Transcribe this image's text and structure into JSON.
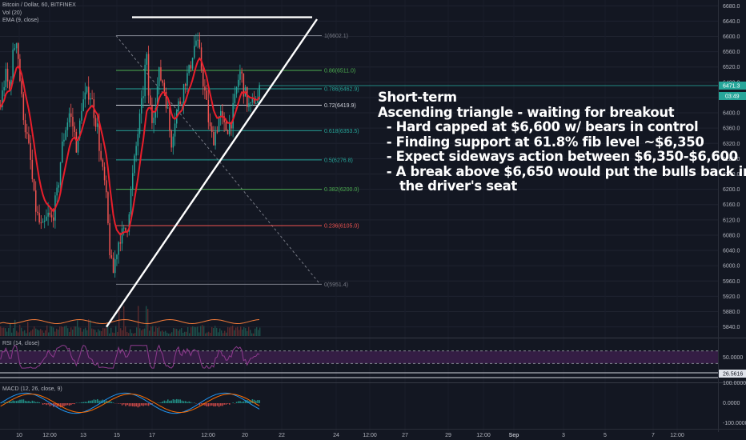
{
  "header": {
    "symbol": "Bitcoin / Dollar, 60, BITFINEX",
    "vol": "Vol (20)",
    "ema": "EMA (9, close)"
  },
  "indicators": {
    "rsi_label": "RSI (14, close)",
    "macd_label": "MACD (12, 26, close, 9)"
  },
  "annotation": {
    "lines": [
      "Short-term",
      "Ascending triangle - waiting for breakout",
      "  - Hard capped at $6,600 w/ bears in control",
      "  - Finding support at 61.8% fib level ~$6,350",
      "  - Expect sideways action between $6,350-$6,600",
      "  - A break above $6,650 would put the bulls back in",
      "     the driver's seat"
    ]
  },
  "colors": {
    "background": "#131722",
    "up": "#26a69a",
    "down": "#ef5350",
    "ema": "#e91e2b",
    "rsi_band": "#3b1f4a",
    "rsi_line": "#8e3a8e",
    "drawing": "#ffffff"
  },
  "chart_data": {
    "type": "candlestick",
    "price_axis": {
      "ticks": [
        6680,
        6640,
        6600,
        6560,
        6520,
        6480,
        6440,
        6400,
        6360,
        6320,
        6280,
        6240,
        6200,
        6160,
        6120,
        6080,
        6040,
        6000,
        5960,
        5920,
        5880,
        5840
      ],
      "tick_labels": [
        "6680.0",
        "6640.0",
        "6600.0",
        "6560.0",
        "6520.0",
        "6480.0",
        "6440.0",
        "6400.0",
        "6360.0",
        "6320.0",
        "6280.0",
        "6240.0",
        "6200.0",
        "6160.0",
        "6120.0",
        "6080.0",
        "6040.0",
        "6000.0",
        "5960.0",
        "5920.0",
        "5880.0",
        "5840.0"
      ],
      "last_price": 6471.3,
      "last_price_label": "6471.3",
      "countdown_label": "03:49"
    },
    "time_axis": {
      "labels": [
        "10",
        "12:00",
        "13",
        "15",
        "17",
        "12:00",
        "20",
        "22",
        "24",
        "12:00",
        "27",
        "29",
        "12:00",
        "Sep",
        "3",
        "5",
        "7",
        "12:00"
      ]
    },
    "fib_levels": [
      {
        "ratio": 1,
        "price": 6602.1,
        "label": "1(6602.1)"
      },
      {
        "ratio": 0.86,
        "price": 6511.0,
        "label": "0.86(6511.0)"
      },
      {
        "ratio": 0.786,
        "price": 6462.9,
        "label": "0.786(6462.9)"
      },
      {
        "ratio": 0.72,
        "price": 6419.9,
        "label": "0.72(6419.9)"
      },
      {
        "ratio": 0.618,
        "price": 6353.5,
        "label": "0.618(6353.5)"
      },
      {
        "ratio": 0.5,
        "price": 6276.8,
        "label": "0.5(6276.8)"
      },
      {
        "ratio": 0.382,
        "price": 6200.0,
        "label": "0.382(6200.0)"
      },
      {
        "ratio": 0.236,
        "price": 6105.0,
        "label": "0.236(6105.0)"
      },
      {
        "ratio": 0,
        "price": 5951.4,
        "label": "0(5951.4)"
      }
    ],
    "fib_colors": [
      "#787b86",
      "#4caf50",
      "#26a69a",
      "#d1d4dc",
      "#26a69a",
      "#26a69a",
      "#4caf50",
      "#ef5350",
      "#787b86"
    ],
    "candle_path": [
      [
        0,
        6420
      ],
      [
        6,
        6500
      ],
      [
        11,
        6460
      ],
      [
        16,
        6560
      ],
      [
        20,
        6600
      ],
      [
        26,
        6440
      ],
      [
        31,
        6360
      ],
      [
        37,
        6280
      ],
      [
        42,
        6170
      ],
      [
        47,
        6120
      ],
      [
        52,
        6090
      ],
      [
        59,
        6130
      ],
      [
        64,
        6120
      ],
      [
        71,
        6190
      ],
      [
        76,
        6300
      ],
      [
        81,
        6360
      ],
      [
        86,
        6400
      ],
      [
        91,
        6360
      ],
      [
        96,
        6300
      ],
      [
        101,
        6420
      ],
      [
        106,
        6440
      ],
      [
        111,
        6460
      ],
      [
        117,
        6400
      ],
      [
        121,
        6360
      ],
      [
        126,
        6260
      ],
      [
        131,
        6200
      ],
      [
        136,
        6050
      ],
      [
        140,
        5970
      ],
      [
        144,
        6030
      ],
      [
        149,
        6080
      ],
      [
        153,
        6080
      ],
      [
        158,
        6100
      ],
      [
        162,
        6180
      ],
      [
        166,
        6250
      ],
      [
        171,
        6340
      ],
      [
        175,
        6400
      ],
      [
        178,
        6450
      ],
      [
        182,
        6560
      ],
      [
        185,
        6440
      ],
      [
        189,
        6380
      ],
      [
        194,
        6440
      ],
      [
        198,
        6500
      ],
      [
        203,
        6480
      ],
      [
        208,
        6420
      ],
      [
        213,
        6320
      ],
      [
        217,
        6380
      ],
      [
        222,
        6420
      ],
      [
        226,
        6440
      ],
      [
        231,
        6490
      ],
      [
        235,
        6500
      ],
      [
        240,
        6560
      ],
      [
        244,
        6590
      ],
      [
        248,
        6560
      ],
      [
        252,
        6500
      ],
      [
        256,
        6440
      ],
      [
        261,
        6360
      ],
      [
        265,
        6330
      ],
      [
        270,
        6360
      ],
      [
        274,
        6400
      ],
      [
        279,
        6360
      ],
      [
        283,
        6360
      ],
      [
        288,
        6380
      ],
      [
        292,
        6420
      ],
      [
        296,
        6480
      ],
      [
        300,
        6510
      ],
      [
        304,
        6460
      ],
      [
        309,
        6420
      ],
      [
        313,
        6410
      ],
      [
        317,
        6440
      ],
      [
        321,
        6430
      ],
      [
        324,
        6460
      ]
    ],
    "trendlines": [
      {
        "name": "resistance",
        "from": [
          165,
          6650
        ],
        "to": [
          390,
          6650
        ]
      },
      {
        "name": "support",
        "from": [
          133,
          5840
        ],
        "to": [
          396,
          6645
        ]
      }
    ],
    "fib_diagonal": {
      "from": [
        145,
        6602.1
      ],
      "to": [
        400,
        5951.4
      ]
    },
    "rsi": {
      "ticks": [
        "50.0000"
      ],
      "value": 26.5616,
      "value_label": "26.5616",
      "upper": 70,
      "lower": 30
    },
    "macd": {
      "ticks": [
        "100.0000",
        "0.0000",
        "-100.0000"
      ]
    }
  }
}
